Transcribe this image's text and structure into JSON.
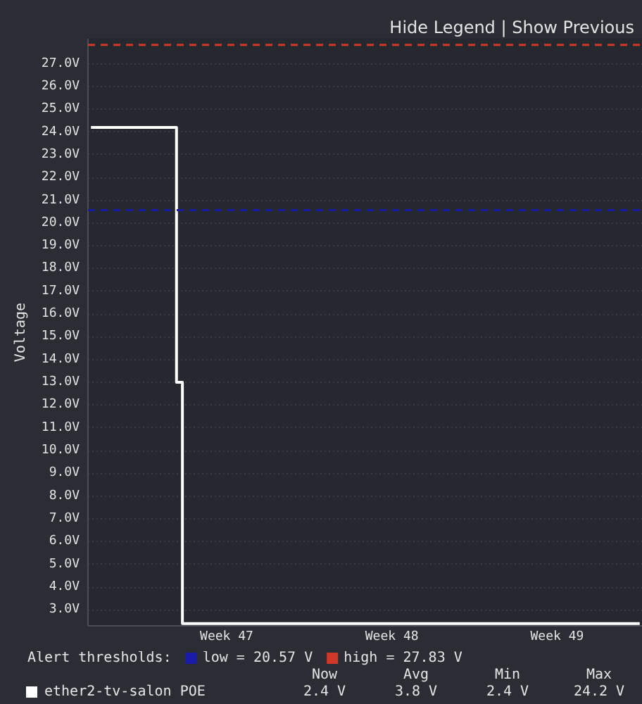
{
  "chart_data": {
    "type": "step",
    "ylabel": "Voltage",
    "legend_title": "Alert thresholds:",
    "legend": "bottom",
    "grid": "y",
    "categories": [
      null,
      null,
      null,
      null,
      null,
      null,
      null,
      null,
      null,
      null,
      null,
      null,
      null,
      null,
      null,
      null,
      null,
      null,
      null,
      null,
      null,
      null,
      null,
      "Week 47",
      null,
      null,
      null,
      null,
      null,
      null,
      null,
      null,
      null,
      null,
      null,
      null,
      null,
      null,
      null,
      null,
      null,
      null,
      null,
      null,
      null,
      null,
      null,
      null,
      null,
      null,
      null,
      "Week 48",
      null,
      null,
      null,
      null,
      null,
      null,
      null,
      null,
      null,
      null,
      null,
      null,
      null,
      null,
      null,
      null,
      null,
      null,
      null,
      null,
      null,
      null,
      null,
      null,
      null,
      null,
      null,
      "Week 49",
      null,
      null,
      null,
      null,
      null,
      null,
      null,
      null,
      null,
      null,
      null,
      null,
      null,
      null
    ],
    "series": [
      {
        "name": "ether2-tv-salon POE",
        "color": "#ffffff",
        "values": [
          24.2,
          24.2,
          24.2,
          24.2,
          24.2,
          24.2,
          24.2,
          24.2,
          24.2,
          24.2,
          24.2,
          24.2,
          24.2,
          24.2,
          24.2,
          13,
          2.4,
          2.4,
          2.4,
          2.4,
          2.4,
          2.4,
          2.4,
          2.4,
          2.4,
          2.4,
          2.4,
          2.4,
          2.4,
          2.4,
          2.4,
          2.4,
          2.4,
          2.4,
          2.4,
          2.4,
          2.4,
          2.4,
          2.4,
          2.4,
          2.4,
          2.4,
          2.4,
          2.4,
          2.4,
          2.4,
          2.4,
          2.4,
          2.4,
          2.4,
          2.4,
          2.4,
          2.4,
          2.4,
          2.4,
          2.4,
          2.4,
          2.4,
          2.4,
          2.4,
          2.4,
          2.4,
          2.4,
          2.4,
          2.4,
          2.4,
          2.4,
          2.4,
          2.4,
          2.4,
          2.4,
          2.4,
          2.4,
          2.4,
          2.4,
          2.4,
          2.4,
          2.4,
          2.4,
          2.4,
          2.4,
          2.4,
          2.4,
          2.4,
          2.4,
          2.4,
          2.4,
          2.4,
          2.4,
          2.4,
          2.4,
          2.4,
          2.4,
          2.4
        ]
      }
    ],
    "ylim": [
      2.3,
      28.1
    ],
    "yticks": [
      {
        "value": 3,
        "label": "3.0V"
      },
      {
        "value": 4,
        "label": "4.0V"
      },
      {
        "value": 5,
        "label": "5.0V"
      },
      {
        "value": 6,
        "label": "6.0V"
      },
      {
        "value": 7,
        "label": "7.0V"
      },
      {
        "value": 8,
        "label": "8.0V"
      },
      {
        "value": 9,
        "label": "9.0V"
      },
      {
        "value": 10,
        "label": "10.0V"
      },
      {
        "value": 11,
        "label": "11.0V"
      },
      {
        "value": 12,
        "label": "12.0V"
      },
      {
        "value": 13,
        "label": "13.0V"
      },
      {
        "value": 14,
        "label": "14.0V"
      },
      {
        "value": 15,
        "label": "15.0V"
      },
      {
        "value": 16,
        "label": "16.0V"
      },
      {
        "value": 17,
        "label": "17.0V"
      },
      {
        "value": 18,
        "label": "18.0V"
      },
      {
        "value": 19,
        "label": "19.0V"
      },
      {
        "value": 20,
        "label": "20.0V"
      },
      {
        "value": 21,
        "label": "21.0V"
      },
      {
        "value": 22,
        "label": "22.0V"
      },
      {
        "value": 23,
        "label": "23.0V"
      },
      {
        "value": 24,
        "label": "24.0V"
      },
      {
        "value": 25,
        "label": "25.0V"
      },
      {
        "value": 26,
        "label": "26.0V"
      },
      {
        "value": 27,
        "label": "27.0V"
      }
    ],
    "ref_lines": [
      {
        "axis": "y",
        "value": 20.57,
        "label": "low = 20.57 V",
        "color": "#1a1aa8",
        "line_style": "dashed"
      },
      {
        "axis": "y",
        "value": 27.83,
        "label": "high = 27.83 V",
        "color": "#d0382a",
        "line_style": "dashed"
      }
    ],
    "annotations": [
      "Hide Legend | Show Previous",
      "Now",
      "Avg",
      "Min",
      "Max",
      "2.4 V",
      "3.8 V",
      "2.4 V",
      "24.2 V"
    ]
  }
}
